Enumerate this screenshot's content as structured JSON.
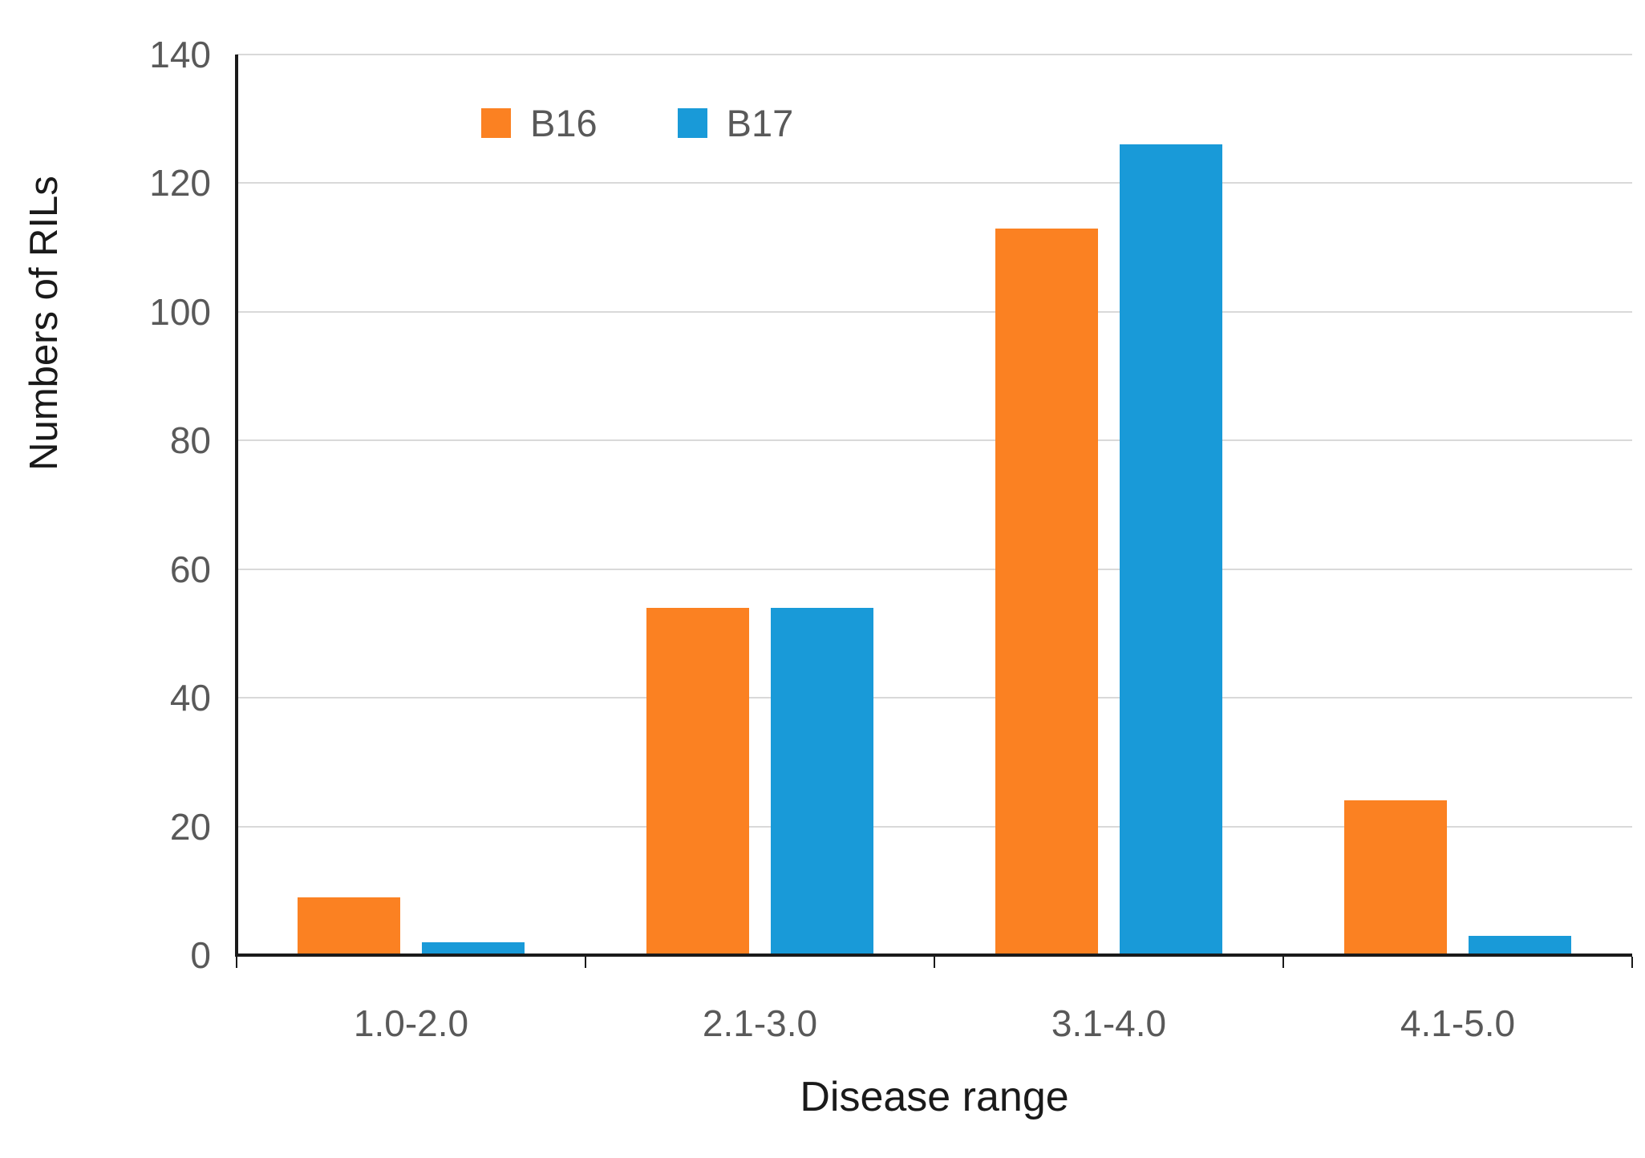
{
  "chart_data": {
    "type": "bar",
    "title": "",
    "xlabel": "Disease range",
    "ylabel": "Numbers of RILs",
    "categories": [
      "1.0-2.0",
      "2.1-3.0",
      "3.1-4.0",
      "4.1-5.0"
    ],
    "series": [
      {
        "name": "B16",
        "color": "#FB8122",
        "values": [
          9,
          54,
          113,
          24
        ]
      },
      {
        "name": "B17",
        "color": "#199AD8",
        "values": [
          2,
          54,
          126,
          3
        ]
      }
    ],
    "ylim": [
      0,
      140
    ],
    "ytick_step": 20,
    "ytick_labels": [
      "0",
      "20",
      "40",
      "60",
      "80",
      "100",
      "120",
      "140"
    ],
    "grid": true,
    "legend_position": "top-center",
    "colors": {
      "grid_line": "#d9d9d9",
      "axis_line": "#1a1a1a",
      "tick_text": "#595959",
      "title_text": "#1a1a1a"
    }
  }
}
